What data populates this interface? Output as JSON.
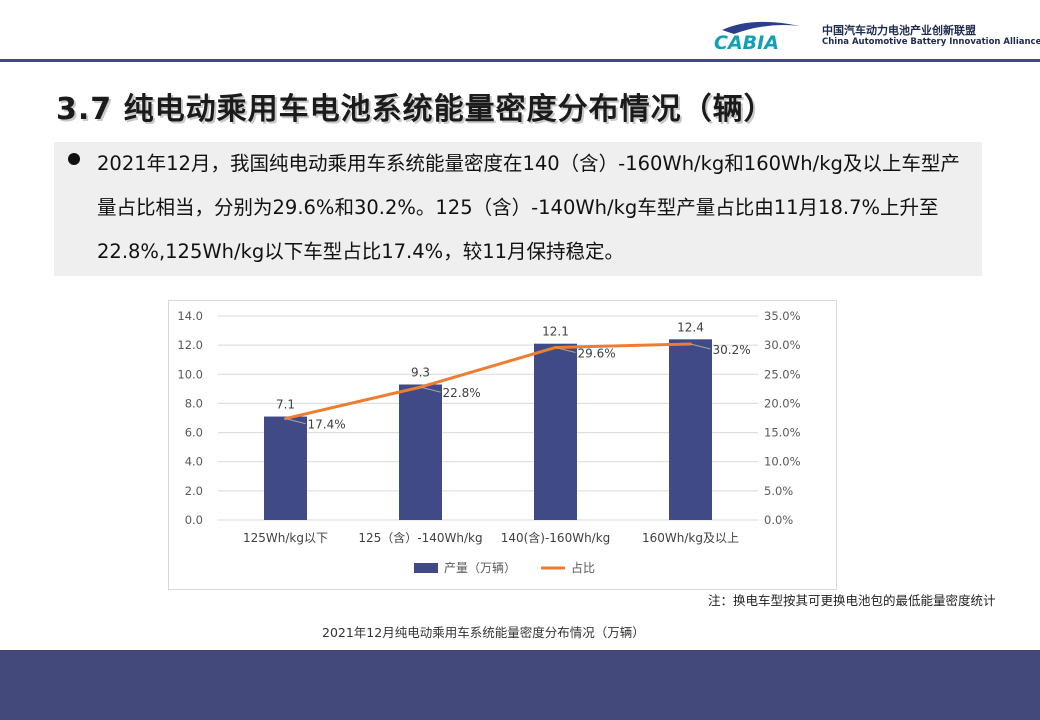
{
  "header": {
    "logo_text": "CABIA",
    "org_name_cn": "中国汽车动力电池产业创新联盟",
    "org_name_en": "China Automotive Battery Innovation Alliance"
  },
  "page_title": "3.7 纯电动乘用车电池系统能量密度分布情况（辆）",
  "summary": "2021年12月，我国纯电动乘用车系统能量密度在140（含）-160Wh/kg和160Wh/kg及以上车型产量占比相当，分别为29.6%和30.2%。125（含）-140Wh/kg车型产量占比由11月18.7%上升至22.8%,125Wh/kg以下车型占比17.4%，较11月保持稳定。",
  "note": "注：换电车型按其可更换电池包的最低能量密度统计",
  "caption": "2021年12月纯电动乘用车系统能量密度分布情况（万辆）",
  "colors": {
    "bar": "#3f4a86",
    "line": "#ed7d31",
    "footer": "#43497a",
    "accent": "#2f4f8f"
  },
  "chart_data": {
    "type": "bar",
    "categories": [
      "125Wh/kg以下",
      "125（含）-140Wh/kg",
      "140(含)-160Wh/kg",
      "160Wh/kg及以上"
    ],
    "series": [
      {
        "name": "产量（万辆）",
        "type": "bar",
        "axis": "left",
        "values": [
          7.1,
          9.3,
          12.1,
          12.4
        ],
        "labels": [
          "7.1",
          "9.3",
          "12.1",
          "12.4"
        ]
      },
      {
        "name": "占比",
        "type": "line",
        "axis": "right",
        "values": [
          17.4,
          22.8,
          29.6,
          30.2
        ],
        "labels": [
          "17.4%",
          "22.8%",
          "29.6%",
          "30.2%"
        ]
      }
    ],
    "y_left": {
      "ylim": [
        0,
        14
      ],
      "ticks": [
        "0.0",
        "2.0",
        "4.0",
        "6.0",
        "8.0",
        "10.0",
        "12.0",
        "14.0"
      ]
    },
    "y_right": {
      "ylim": [
        0,
        35
      ],
      "ticks": [
        "0.0%",
        "5.0%",
        "10.0%",
        "15.0%",
        "20.0%",
        "25.0%",
        "30.0%",
        "35.0%"
      ]
    },
    "grid": true,
    "legend_position": "bottom"
  }
}
